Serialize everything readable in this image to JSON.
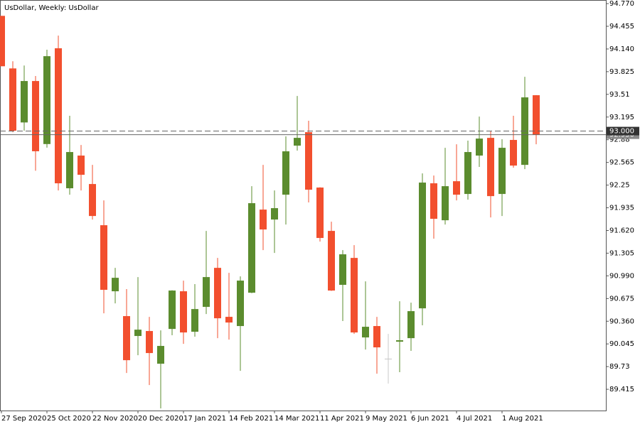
{
  "chart_data": {
    "type": "candlestick",
    "title": "UsDollar, Weekly:  UsDollar",
    "x": [
      "27 Sep 2020",
      null,
      null,
      null,
      "25 Oct 2020",
      null,
      null,
      null,
      "22 Nov 2020",
      null,
      null,
      null,
      "20 Dec 2020",
      null,
      null,
      null,
      "17 Jan 2021",
      null,
      null,
      null,
      "14 Feb 2021",
      null,
      null,
      null,
      "14 Mar 2021",
      null,
      null,
      null,
      "11 Apr 2021",
      null,
      null,
      null,
      "9 May 2021",
      null,
      null,
      null,
      "6 Jun 2021",
      null,
      null,
      null,
      "4 Jul 2021",
      null,
      null,
      null,
      "1 Aug 2021",
      null,
      null,
      null
    ],
    "open": [
      94.6,
      93.87,
      93.12,
      93.695,
      92.82,
      94.15,
      92.206,
      92.66,
      92.265,
      91.693,
      90.776,
      90.431,
      90.155,
      90.224,
      89.77,
      90.253,
      90.776,
      90.214,
      90.559,
      91.101,
      90.421,
      90.293,
      90.756,
      91.91,
      91.772,
      92.117,
      92.798,
      92.985,
      92.216,
      91.614,
      90.865,
      91.239,
      90.135,
      90.293,
      89.84,
      90.076,
      90.125,
      90.539,
      92.275,
      91.762,
      92.304,
      92.127,
      92.66,
      92.906,
      92.127,
      92.877,
      92.531,
      93.498
    ],
    "high": [
      94.6,
      93.97,
      93.91,
      93.765,
      94.13,
      94.326,
      93.212,
      92.807,
      92.531,
      92.038,
      91.101,
      90.806,
      90.973,
      90.421,
      90.233,
      90.79,
      90.924,
      90.875,
      91.614,
      91.239,
      91.032,
      90.983,
      92.235,
      92.531,
      92.176,
      92.926,
      93.488,
      93.143,
      92.22,
      91.742,
      91.348,
      91.417,
      90.914,
      90.421,
      90.184,
      90.638,
      90.618,
      92.413,
      92.383,
      92.768,
      92.817,
      92.867,
      93.202,
      92.995,
      92.887,
      93.212,
      93.754,
      93.5
    ],
    "low": [
      93.9,
      92.985,
      93.005,
      92.45,
      92.77,
      92.176,
      92.117,
      92.176,
      91.772,
      90.47,
      90.608,
      89.642,
      89.888,
      89.474,
      89.149,
      90.165,
      90.046,
      90.145,
      90.46,
      90.125,
      90.105,
      89.671,
      90.75,
      91.348,
      91.308,
      91.703,
      92.729,
      92.009,
      91.466,
      90.78,
      90.362,
      90.184,
      89.967,
      89.632,
      89.494,
      89.652,
      89.948,
      90.303,
      91.506,
      91.703,
      92.038,
      92.048,
      92.502,
      91.801,
      91.821,
      92.492,
      92.472,
      92.817
    ],
    "close": [
      93.9,
      93.005,
      93.695,
      92.72,
      94.04,
      92.275,
      92.709,
      92.393,
      91.821,
      90.796,
      90.963,
      89.819,
      90.243,
      89.918,
      90.017,
      90.786,
      90.204,
      90.529,
      90.973,
      90.401,
      90.342,
      90.924,
      91.999,
      91.634,
      91.93,
      92.719,
      92.906,
      92.186,
      91.516,
      90.786,
      91.289,
      90.204,
      90.283,
      89.997,
      89.84,
      90.096,
      90.5,
      92.285,
      91.782,
      92.235,
      92.117,
      92.709,
      92.896,
      92.097,
      92.768,
      92.521,
      93.468,
      92.946
    ],
    "up_color": "#5b8c2e",
    "down_color": "#f24f2e",
    "neutral_color": "#c8c8c8",
    "ylim": [
      89.12,
      94.82
    ],
    "yticks": [
      {
        "value": 94.77,
        "label": "94.770"
      },
      94.455,
      {
        "value": 94.14,
        "label": "94.140"
      },
      93.825,
      93.51,
      93.195,
      92.88,
      92.565,
      92.25,
      91.935,
      {
        "value": 91.62,
        "label": "91.620"
      },
      91.305,
      {
        "value": 90.99,
        "label": "90.990"
      },
      90.675,
      {
        "value": 90.36,
        "label": "90.360"
      },
      90.045,
      89.73,
      89.415
    ],
    "price_lines": [
      {
        "value": 92.95,
        "label": "92.950",
        "style": "solid"
      },
      {
        "value": 93.0,
        "label": "93.000",
        "style": "dashed"
      }
    ]
  }
}
